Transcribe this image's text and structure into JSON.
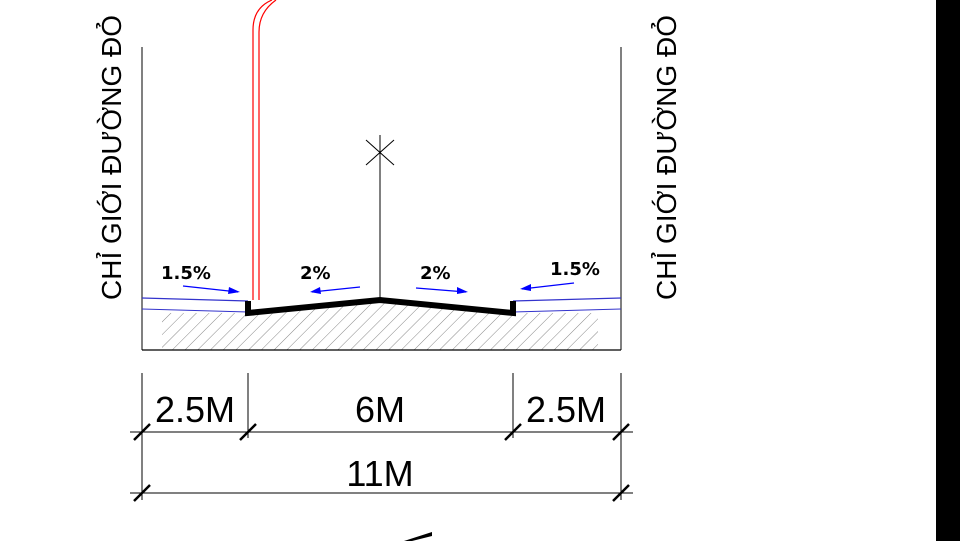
{
  "boundary": {
    "left_label": "CHỈ GIỚI ĐƯỜNG ĐỎ",
    "right_label": "CHỈ GIỚI ĐƯỜNG ĐỎ"
  },
  "slopes": {
    "left_sidewalk": "1.5%",
    "left_carriageway": "2%",
    "right_carriageway": "2%",
    "right_sidewalk": "1.5%"
  },
  "dimensions": {
    "left_sidewalk": "2.5M",
    "carriageway": "6M",
    "right_sidewalk": "2.5M",
    "total": "11M"
  },
  "colors": {
    "line": "#000000",
    "slope_arrow": "#0000ff",
    "sidewalk_edge": "#3333cc",
    "red_line": "#ff0000"
  }
}
